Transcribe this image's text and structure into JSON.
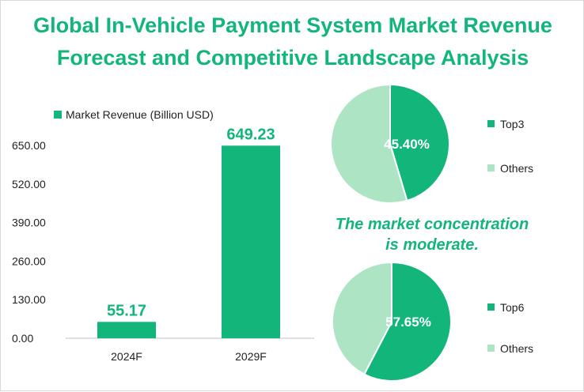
{
  "title_line1": "Global In-Vehicle Payment System Market Revenue",
  "title_line2": "Forecast and Competitive Landscape Analysis",
  "note_line1": "The market concentration",
  "note_line2": "is moderate.",
  "colors": {
    "accent": "#12b57a",
    "light": "#ade5c4"
  },
  "chart_data": [
    {
      "type": "bar",
      "legend": "Market Revenue (Billion USD)",
      "categories": [
        "2024F",
        "2029F"
      ],
      "values": [
        55.17,
        649.23
      ],
      "value_labels": [
        "55.17",
        "649.23"
      ],
      "yticks": [
        "0.00",
        "130.00",
        "260.00",
        "390.00",
        "520.00",
        "650.00"
      ],
      "ylim": [
        0,
        650
      ],
      "grid": false,
      "legend_position": "top"
    },
    {
      "type": "pie",
      "slices": [
        {
          "label": "Top3",
          "value": 45.4,
          "value_label": "45.40%"
        },
        {
          "label": "Others",
          "value": 54.6
        }
      ],
      "legend_position": "right"
    },
    {
      "type": "pie",
      "slices": [
        {
          "label": "Top6",
          "value": 57.65,
          "value_label": "57.65%"
        },
        {
          "label": "Others",
          "value": 42.35
        }
      ],
      "legend_position": "right"
    }
  ]
}
